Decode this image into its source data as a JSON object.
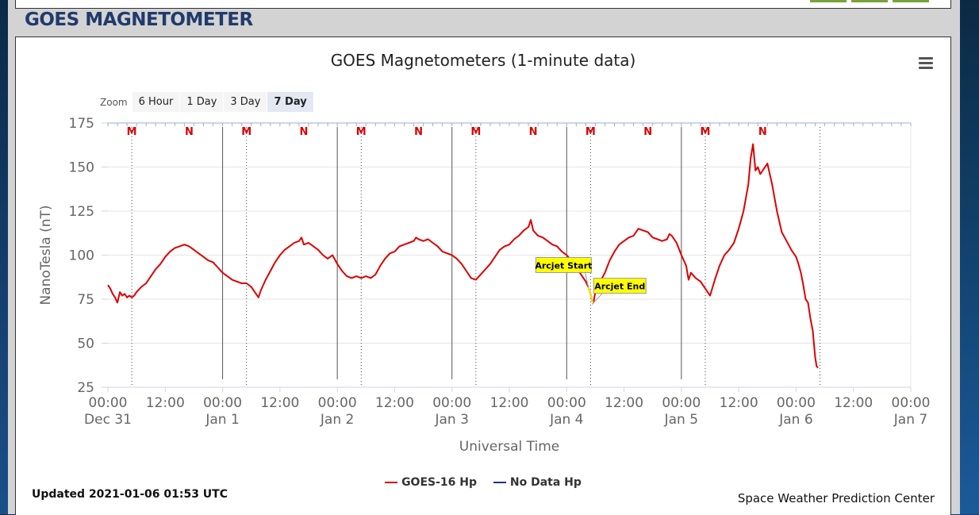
{
  "section_title": "GOES MAGNETOMETER",
  "chart_title": "GOES Magnetometers (1-minute data)",
  "zoom": {
    "label": "Zoom",
    "options": [
      "6 Hour",
      "1 Day",
      "3 Day",
      "7 Day"
    ],
    "selected": "7 Day"
  },
  "legend": [
    {
      "name": "GOES-16 Hp",
      "color": "#dd0000"
    },
    {
      "name": "No Data Hp",
      "color": "#1c2f9c"
    }
  ],
  "updated_text": "Updated 2021-01-06 01:53 UTC",
  "credit": "Space Weather Prediction Center",
  "colors": {
    "series": "#dd0000",
    "annotation_bg": "#ffff00",
    "marker": "#dd0000"
  },
  "chart_data": {
    "type": "line",
    "title": "GOES Magnetometers (1-minute data)",
    "xlabel": "Universal Time",
    "ylabel": "NanoTesla (nT)",
    "x_unit": "hours since 00:00 Dec 31",
    "xlim": [
      0,
      168
    ],
    "ylim": [
      25,
      175
    ],
    "yticks": [
      25,
      50,
      75,
      100,
      125,
      150,
      175
    ],
    "xticks": [
      {
        "x": 0,
        "time": "00:00",
        "date": "Dec 31"
      },
      {
        "x": 12,
        "time": "12:00",
        "date": ""
      },
      {
        "x": 24,
        "time": "00:00",
        "date": "Jan 1"
      },
      {
        "x": 36,
        "time": "12:00",
        "date": ""
      },
      {
        "x": 48,
        "time": "00:00",
        "date": "Jan 2"
      },
      {
        "x": 60,
        "time": "12:00",
        "date": ""
      },
      {
        "x": 72,
        "time": "00:00",
        "date": "Jan 3"
      },
      {
        "x": 84,
        "time": "12:00",
        "date": ""
      },
      {
        "x": 96,
        "time": "00:00",
        "date": "Jan 4"
      },
      {
        "x": 108,
        "time": "12:00",
        "date": ""
      },
      {
        "x": 120,
        "time": "00:00",
        "date": "Jan 5"
      },
      {
        "x": 132,
        "time": "12:00",
        "date": ""
      },
      {
        "x": 144,
        "time": "00:00",
        "date": "Jan 6"
      },
      {
        "x": 156,
        "time": "12:00",
        "date": ""
      },
      {
        "x": 168,
        "time": "00:00",
        "date": "Jan 7"
      }
    ],
    "day_lines": [
      24,
      48,
      72,
      96,
      120
    ],
    "midnight_dotted": [
      5,
      29,
      53,
      77,
      101,
      125,
      149
    ],
    "markers": [
      {
        "label": "M",
        "x": 5
      },
      {
        "label": "N",
        "x": 17
      },
      {
        "label": "M",
        "x": 29
      },
      {
        "label": "N",
        "x": 41
      },
      {
        "label": "M",
        "x": 53
      },
      {
        "label": "N",
        "x": 65
      },
      {
        "label": "M",
        "x": 77
      },
      {
        "label": "N",
        "x": 89
      },
      {
        "label": "M",
        "x": 101
      },
      {
        "label": "N",
        "x": 113
      },
      {
        "label": "M",
        "x": 125
      },
      {
        "label": "N",
        "x": 137
      }
    ],
    "annotations": [
      {
        "label": "Arcjet Start",
        "x": 100.5,
        "y": 82
      },
      {
        "label": "Arcjet End",
        "x": 101.3,
        "y": 72
      }
    ],
    "series": [
      {
        "name": "GOES-16 Hp",
        "color": "#dd0000",
        "points": [
          [
            0,
            83
          ],
          [
            0.5,
            81
          ],
          [
            1,
            78
          ],
          [
            1.5,
            76
          ],
          [
            2,
            73
          ],
          [
            2.5,
            79
          ],
          [
            3,
            77
          ],
          [
            3.5,
            78
          ],
          [
            4,
            76
          ],
          [
            4.5,
            77
          ],
          [
            5,
            76
          ],
          [
            5.5,
            77
          ],
          [
            6,
            79
          ],
          [
            7,
            82
          ],
          [
            8,
            84
          ],
          [
            9,
            88
          ],
          [
            10,
            92
          ],
          [
            11,
            95
          ],
          [
            12,
            99
          ],
          [
            13,
            102
          ],
          [
            14,
            104
          ],
          [
            15,
            105
          ],
          [
            16,
            106
          ],
          [
            17,
            105
          ],
          [
            18,
            103
          ],
          [
            19,
            101
          ],
          [
            20,
            99
          ],
          [
            21,
            97
          ],
          [
            22,
            96
          ],
          [
            23,
            93
          ],
          [
            24,
            90
          ],
          [
            25,
            88
          ],
          [
            26,
            86
          ],
          [
            27,
            85
          ],
          [
            28,
            84
          ],
          [
            29,
            84
          ],
          [
            30,
            82
          ],
          [
            31,
            78
          ],
          [
            31.5,
            76
          ],
          [
            32,
            80
          ],
          [
            33,
            86
          ],
          [
            34,
            91
          ],
          [
            35,
            96
          ],
          [
            36,
            100
          ],
          [
            37,
            103
          ],
          [
            38,
            105
          ],
          [
            39,
            107
          ],
          [
            40,
            108
          ],
          [
            40.5,
            110
          ],
          [
            41,
            106
          ],
          [
            42,
            107
          ],
          [
            43,
            105
          ],
          [
            44,
            103
          ],
          [
            45,
            100
          ],
          [
            46,
            98
          ],
          [
            47,
            100
          ],
          [
            48,
            95
          ],
          [
            49,
            91
          ],
          [
            50,
            88
          ],
          [
            51,
            87
          ],
          [
            52,
            88
          ],
          [
            53,
            87
          ],
          [
            54,
            88
          ],
          [
            55,
            87
          ],
          [
            56,
            89
          ],
          [
            57,
            94
          ],
          [
            58,
            98
          ],
          [
            59,
            101
          ],
          [
            60,
            102
          ],
          [
            61,
            105
          ],
          [
            62,
            106
          ],
          [
            63,
            107
          ],
          [
            64,
            108
          ],
          [
            64.5,
            110
          ],
          [
            65,
            109
          ],
          [
            66,
            108
          ],
          [
            67,
            109
          ],
          [
            68,
            107
          ],
          [
            69,
            105
          ],
          [
            70,
            102
          ],
          [
            71,
            101
          ],
          [
            72,
            100
          ],
          [
            73,
            98
          ],
          [
            74,
            95
          ],
          [
            75,
            91
          ],
          [
            76,
            87
          ],
          [
            77,
            86
          ],
          [
            78,
            89
          ],
          [
            79,
            92
          ],
          [
            80,
            95
          ],
          [
            81,
            99
          ],
          [
            82,
            103
          ],
          [
            83,
            105
          ],
          [
            84,
            106
          ],
          [
            85,
            109
          ],
          [
            86,
            111
          ],
          [
            87,
            114
          ],
          [
            88,
            116
          ],
          [
            88.5,
            120
          ],
          [
            89,
            114
          ],
          [
            90,
            111
          ],
          [
            91,
            110
          ],
          [
            92,
            108
          ],
          [
            93,
            106
          ],
          [
            94,
            105
          ],
          [
            95,
            102
          ],
          [
            96,
            100
          ],
          [
            97,
            97
          ],
          [
            98,
            93
          ],
          [
            99,
            89
          ],
          [
            100,
            85
          ],
          [
            100.5,
            82
          ],
          [
            101,
            78
          ],
          [
            101.3,
            74
          ],
          [
            101.6,
            73
          ],
          [
            102,
            79
          ],
          [
            103,
            85
          ],
          [
            104,
            90
          ],
          [
            105,
            97
          ],
          [
            106,
            102
          ],
          [
            107,
            106
          ],
          [
            108,
            108
          ],
          [
            109,
            110
          ],
          [
            110,
            111
          ],
          [
            111,
            115
          ],
          [
            112,
            114
          ],
          [
            113,
            113
          ],
          [
            114,
            110
          ],
          [
            115,
            109
          ],
          [
            116,
            108
          ],
          [
            117,
            109
          ],
          [
            117.5,
            112
          ],
          [
            118,
            111
          ],
          [
            119,
            107
          ],
          [
            120,
            100
          ],
          [
            121,
            94
          ],
          [
            121.5,
            86
          ],
          [
            122,
            90
          ],
          [
            123,
            87
          ],
          [
            124,
            85
          ],
          [
            125,
            81
          ],
          [
            126,
            77
          ],
          [
            127,
            86
          ],
          [
            128,
            94
          ],
          [
            129,
            100
          ],
          [
            130,
            103
          ],
          [
            131,
            107
          ],
          [
            132,
            115
          ],
          [
            133,
            125
          ],
          [
            134,
            140
          ],
          [
            134.5,
            155
          ],
          [
            135,
            163
          ],
          [
            135.5,
            148
          ],
          [
            136,
            150
          ],
          [
            136.5,
            146
          ],
          [
            137,
            148
          ],
          [
            138,
            152
          ],
          [
            139,
            140
          ],
          [
            140,
            125
          ],
          [
            141,
            113
          ],
          [
            142,
            108
          ],
          [
            143,
            103
          ],
          [
            144,
            99
          ],
          [
            144.5,
            95
          ],
          [
            145,
            90
          ],
          [
            145.5,
            83
          ],
          [
            146,
            75
          ],
          [
            146.5,
            73
          ],
          [
            147,
            64
          ],
          [
            147.5,
            57
          ],
          [
            148,
            42
          ],
          [
            148.3,
            37
          ],
          [
            148.6,
            36
          ]
        ]
      },
      {
        "name": "No Data Hp",
        "color": "#1c2f9c",
        "points": []
      }
    ]
  }
}
